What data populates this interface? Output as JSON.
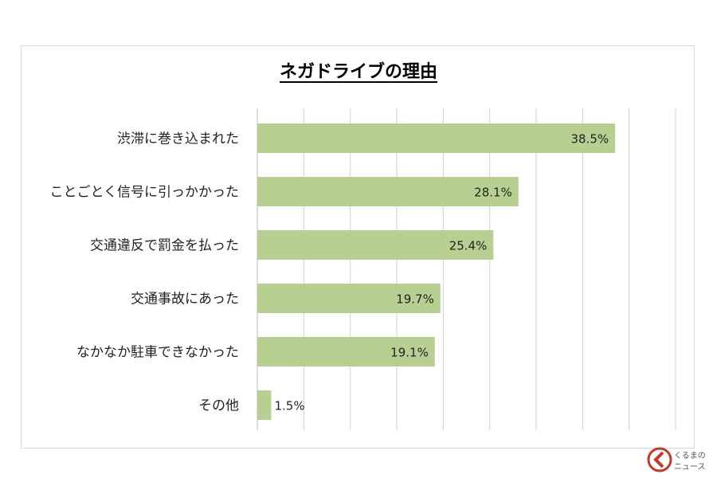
{
  "chart_data": {
    "type": "bar",
    "orientation": "horizontal",
    "title": "ネガドライブの理由",
    "categories": [
      "渋滞に巻き込まれた",
      "ことごとく信号に引っかかった",
      "交通違反で罰金を払った",
      "交通事故にあった",
      "なかなか駐車できなかった",
      "その他"
    ],
    "values": [
      38.5,
      28.1,
      25.4,
      19.7,
      19.1,
      1.5
    ],
    "value_labels": [
      "38.5%",
      "28.1%",
      "25.4%",
      "19.7%",
      "19.1%",
      "1.5%"
    ],
    "xlim": [
      0,
      45
    ],
    "grid_step": 5,
    "grid": true,
    "xlabel": "",
    "ylabel": ""
  },
  "colors": {
    "bar": "#b8cf92",
    "grid": "#d0d0d0",
    "logo_accent": "#c0392b"
  },
  "logo": {
    "text_top": "くるまの",
    "text_bottom": "ニュース"
  }
}
